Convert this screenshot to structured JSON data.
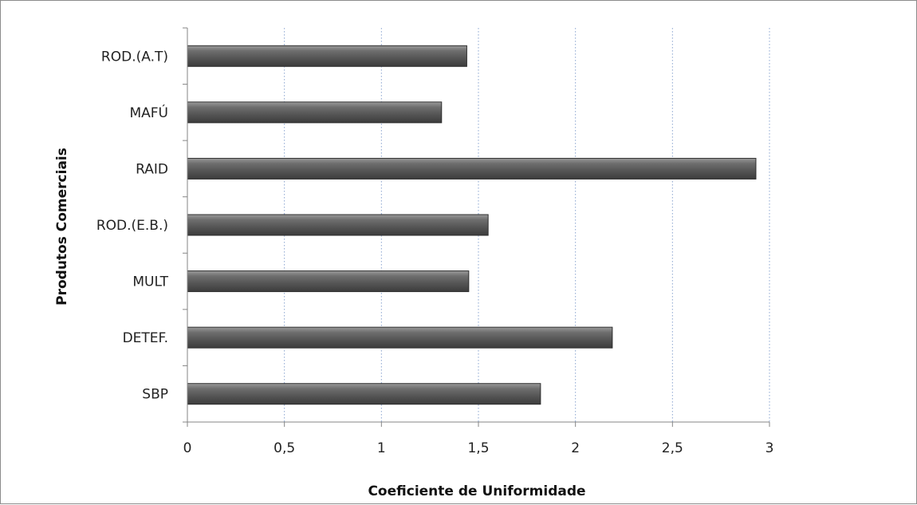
{
  "chart_data": {
    "type": "bar",
    "orientation": "horizontal",
    "categories": [
      "SBP",
      "DETEF.",
      "MULT",
      "ROD.(E.B.)",
      "RAID",
      "MAFÚ",
      "ROD.(A.T)"
    ],
    "values": [
      1.82,
      2.19,
      1.45,
      1.55,
      2.93,
      1.31,
      1.44
    ],
    "xlabel": "Coeficiente de Uniformidade",
    "ylabel": "Produtos Comerciais",
    "xlim": [
      0,
      3
    ],
    "xticks": [
      0,
      0.5,
      1,
      1.5,
      2,
      2.5,
      3
    ],
    "xtick_labels": [
      "0",
      "0,5",
      "1",
      "1,5",
      "2",
      "2,5",
      "3"
    ],
    "grid": "vertical dotted",
    "bar_color": "#5a5a5a",
    "grid_color": "#8aa4d0"
  }
}
